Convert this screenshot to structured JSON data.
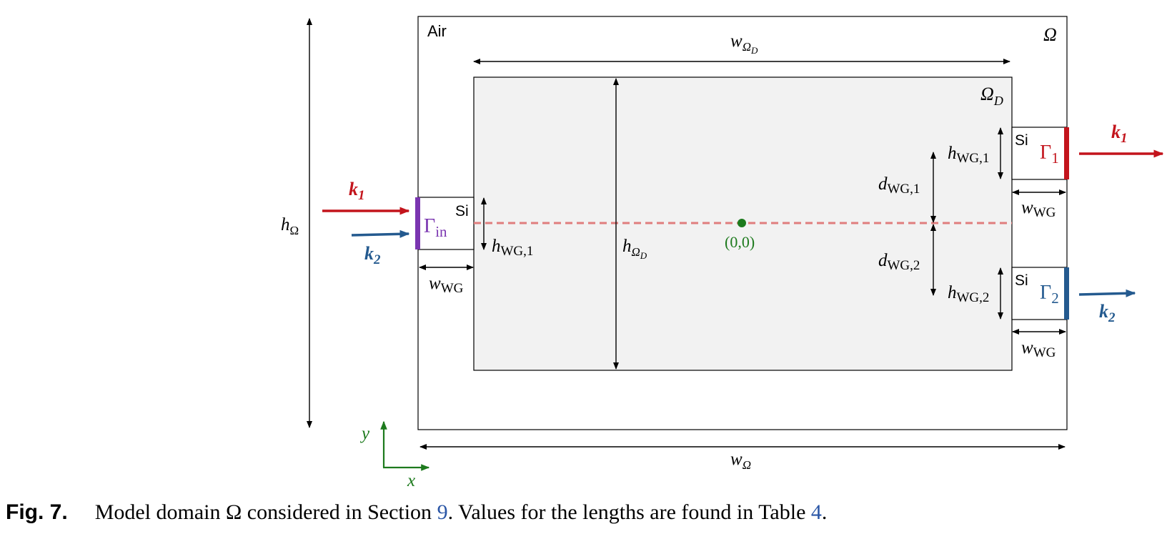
{
  "colors": {
    "red": "#c3141c",
    "blue": "#245a8f",
    "purple": "#7a35b0",
    "green": "#1d7a1d",
    "dashed": "#e07d7d",
    "design_fill": "#f2f2f2"
  },
  "labels": {
    "air": "Air",
    "omega": "Ω",
    "omega_d": "Ω",
    "omega_d_sub": "D",
    "si_in": "Si",
    "si_1": "Si",
    "si_2": "Si",
    "gamma_in": "Γ",
    "gamma_in_sub": "in",
    "gamma_1": "Γ",
    "gamma_1_sub": "1",
    "gamma_2": "Γ",
    "gamma_2_sub": "2",
    "k1_in": "k",
    "k1_in_sub": "1",
    "k2_in": "k",
    "k2_in_sub": "2",
    "k1_out": "k",
    "k1_out_sub": "1",
    "k2_out": "k",
    "k2_out_sub": "2",
    "origin": "(0,0)",
    "axis_x": "x",
    "axis_y": "y",
    "h_omega": "h",
    "h_omega_sub": "Ω",
    "w_omega": "w",
    "w_omega_sub": "Ω",
    "w_omega_d": "w",
    "w_omega_d_sub1": "Ω",
    "w_omega_d_sub2": "D",
    "h_omega_d": "h",
    "h_omega_d_sub1": "Ω",
    "h_omega_d_sub2": "D",
    "h_wg1_left": "h",
    "h_wg1_left_sub": "WG,1",
    "w_wg_left": "w",
    "w_wg_left_sub": "WG",
    "h_wg1_right": "h",
    "h_wg1_right_sub": "WG,1",
    "h_wg2_right": "h",
    "h_wg2_right_sub": "WG,2",
    "d_wg1": "d",
    "d_wg1_sub": "WG,1",
    "d_wg2": "d",
    "d_wg2_sub": "WG,2",
    "w_wg_right1": "w",
    "w_wg_right1_sub": "WG",
    "w_wg_right2": "w",
    "w_wg_right2_sub": "WG"
  },
  "caption": {
    "fig_label": "Fig. 7.",
    "text_before": "Model domain Ω considered in Section ",
    "section_ref": "9",
    "text_middle": ". Values for the lengths are found in Table ",
    "table_ref": "4",
    "text_after": "."
  }
}
